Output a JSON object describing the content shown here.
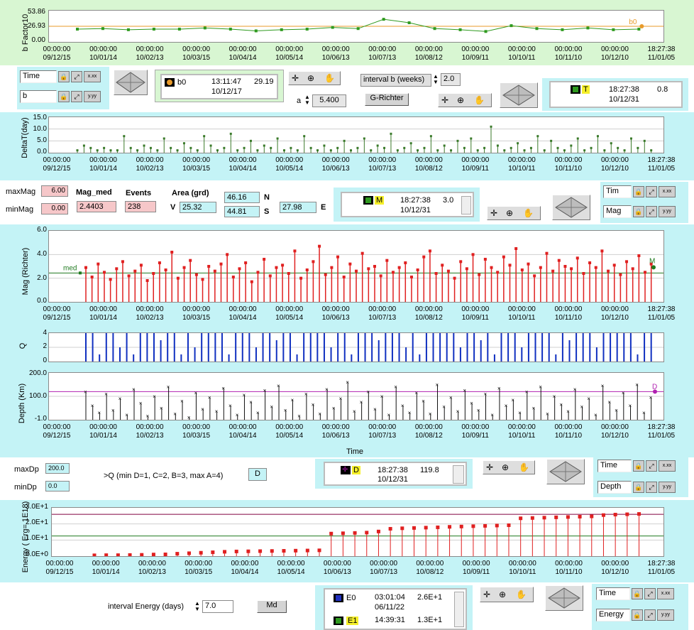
{
  "chart_data": [
    {
      "type": "line",
      "ylabel": "b Factor10",
      "yticks": [
        "53.86",
        "26.93",
        "0.00"
      ],
      "ylim": [
        0,
        53.86
      ],
      "x_ticks": [
        [
          "00:00:00",
          "09/12/15"
        ],
        [
          "00:00:00",
          "10/01/14"
        ],
        [
          "00:00:00",
          "10/02/13"
        ],
        [
          "00:00:00",
          "10/03/15"
        ],
        [
          "00:00:00",
          "10/04/14"
        ],
        [
          "00:00:00",
          "10/05/14"
        ],
        [
          "00:00:00",
          "10/06/13"
        ],
        [
          "00:00:00",
          "10/07/13"
        ],
        [
          "00:00:00",
          "10/08/12"
        ],
        [
          "00:00:00",
          "10/09/11"
        ],
        [
          "00:00:00",
          "10/10/11"
        ],
        [
          "00:00:00",
          "10/11/10"
        ],
        [
          "00:00:00",
          "10/12/10"
        ],
        [
          "18:27:38",
          "11/01/05"
        ]
      ],
      "values": [
        22,
        23,
        21,
        22,
        22,
        24,
        22,
        19,
        21,
        22,
        25,
        23,
        39,
        33,
        23,
        21,
        18,
        28,
        23,
        21,
        24,
        21,
        22
      ],
      "ref_line": 26.93,
      "cursor_label": "b0",
      "colors": {
        "line": "#2f9a1f",
        "ref": "#e89a2a",
        "cursor": "#e89a2a"
      }
    },
    {
      "type": "bar",
      "ylabel": "DeltaT(day)",
      "yticks": [
        "15.0",
        "10.0",
        "5.0",
        "0.0"
      ],
      "ylim": [
        0,
        15
      ],
      "x_ticks": [
        [
          "00:00:00",
          "09/12/15"
        ],
        [
          "00:00:00",
          "10/01/14"
        ],
        [
          "00:00:00",
          "10/02/13"
        ],
        [
          "00:00:00",
          "10/03/15"
        ],
        [
          "00:00:00",
          "10/04/14"
        ],
        [
          "00:00:00",
          "10/05/14"
        ],
        [
          "00:00:00",
          "10/06/13"
        ],
        [
          "00:00:00",
          "10/07/13"
        ],
        [
          "00:00:00",
          "10/08/12"
        ],
        [
          "00:00:00",
          "10/09/11"
        ],
        [
          "00:00:00",
          "10/10/11"
        ],
        [
          "00:00:00",
          "10/11/10"
        ],
        [
          "00:00:00",
          "10/12/10"
        ],
        [
          "18:27:38",
          "11/01/05"
        ]
      ],
      "values": [
        1,
        3,
        2,
        1,
        2,
        1,
        1,
        7,
        2,
        1,
        3,
        2,
        1,
        6,
        2,
        1,
        4,
        2,
        1,
        7,
        3,
        1,
        2,
        8,
        1,
        2,
        5,
        1,
        3,
        2,
        6,
        1,
        2,
        1,
        7,
        2,
        1,
        3,
        1,
        2,
        5,
        1,
        2,
        6,
        1,
        3,
        2,
        8,
        1,
        2,
        4,
        1,
        2,
        7,
        1,
        3,
        1,
        5,
        2,
        6,
        1,
        2,
        11,
        3,
        1,
        2,
        4,
        1,
        2,
        7,
        1,
        5,
        2,
        1,
        3,
        6,
        1,
        2,
        7,
        1,
        4,
        2,
        1,
        6,
        2,
        5,
        1
      ],
      "colors": {
        "line": "#3a7a2a"
      }
    },
    {
      "type": "bar",
      "ylabel": "Mag (Richter)",
      "yticks": [
        "6.0",
        "4.0",
        "2.0",
        "0.0"
      ],
      "ylim": [
        0,
        6
      ],
      "x_ticks": [
        [
          "00:00:00",
          "09/12/15"
        ],
        [
          "00:00:00",
          "10/01/14"
        ],
        [
          "00:00:00",
          "10/02/13"
        ],
        [
          "00:00:00",
          "10/03/15"
        ],
        [
          "00:00:00",
          "10/04/14"
        ],
        [
          "00:00:00",
          "10/05/14"
        ],
        [
          "00:00:00",
          "10/06/13"
        ],
        [
          "00:00:00",
          "10/07/13"
        ],
        [
          "00:00:00",
          "10/08/12"
        ],
        [
          "00:00:00",
          "10/09/11"
        ],
        [
          "00:00:00",
          "10/10/11"
        ],
        [
          "00:00:00",
          "10/11/10"
        ],
        [
          "00:00:00",
          "10/12/10"
        ],
        [
          "18:27:38",
          "11/01/05"
        ]
      ],
      "values": [
        2.9,
        2.1,
        3.2,
        2.5,
        1.9,
        2.8,
        3.4,
        2.2,
        2.6,
        3.1,
        1.8,
        2.4,
        3.3,
        2.7,
        4.2,
        2.0,
        2.9,
        3.5,
        2.3,
        1.9,
        3.0,
        2.6,
        3.2,
        4.0,
        2.1,
        2.8,
        3.3,
        1.7,
        2.5,
        3.6,
        2.2,
        2.9,
        3.1,
        2.4,
        4.3,
        2.0,
        2.7,
        3.4,
        4.7,
        2.3,
        2.9,
        3.8,
        2.1,
        3.2,
        2.6,
        4.1,
        2.8,
        3.0,
        2.2,
        3.5,
        2.5,
        2.9,
        3.3,
        2.1,
        2.7,
        3.8,
        4.3,
        2.4,
        3.1,
        2.6,
        2.0,
        3.4,
        2.8,
        4.0,
        2.3,
        3.6,
        2.9,
        2.5,
        3.8,
        3.1,
        4.5,
        2.7,
        3.2,
        2.2,
        2.9,
        4.1,
        2.6,
        3.5,
        3.0,
        2.8,
        3.7,
        2.4,
        3.3,
        2.9,
        4.3,
        2.6,
        3.1,
        2.3,
        3.4,
        2.8,
        3.9,
        2.5,
        3.2
      ],
      "ref_line": 2.4403,
      "ref_label": "med",
      "cursor_label": "M",
      "colors": {
        "line": "#e02020",
        "ref": "#1f7a1f",
        "cursor": "#1f7a1f"
      }
    },
    {
      "type": "bar",
      "ylabel": "Q",
      "yticks": [
        "4",
        "2",
        "0"
      ],
      "ylim": [
        0,
        4
      ],
      "values": [
        4,
        4,
        1,
        4,
        4,
        2,
        4,
        1,
        4,
        4,
        4,
        3,
        4,
        4,
        1,
        4,
        2,
        4,
        4,
        4,
        4,
        1,
        4,
        4,
        4,
        2,
        4,
        4,
        3,
        4,
        4,
        1,
        4,
        4,
        4,
        4,
        2,
        4,
        4,
        1,
        4,
        4,
        4,
        3,
        4,
        4,
        4,
        2,
        4,
        1,
        4,
        4,
        4,
        4,
        4,
        2,
        4,
        4,
        3,
        4,
        1,
        4,
        4,
        4,
        2,
        4,
        4,
        4,
        4,
        1,
        4,
        3,
        4,
        4,
        4,
        2,
        4,
        4,
        4,
        4,
        4,
        1,
        4,
        4
      ],
      "colors": {
        "line": "#1030c0"
      }
    },
    {
      "type": "scatter",
      "ylabel": "Depth (Km)",
      "xlabel": "Time",
      "yticks": [
        "200.0",
        "100.0",
        "-1.0"
      ],
      "ylim": [
        -1,
        200
      ],
      "x_ticks": [
        [
          "00:00:00",
          "09/12/15"
        ],
        [
          "00:00:00",
          "10/01/14"
        ],
        [
          "00:00:00",
          "10/02/13"
        ],
        [
          "00:00:00",
          "10/03/15"
        ],
        [
          "00:00:00",
          "10/04/14"
        ],
        [
          "00:00:00",
          "10/05/14"
        ],
        [
          "00:00:00",
          "10/06/13"
        ],
        [
          "00:00:00",
          "10/07/13"
        ],
        [
          "00:00:00",
          "10/08/12"
        ],
        [
          "00:00:00",
          "10/09/11"
        ],
        [
          "00:00:00",
          "10/10/11"
        ],
        [
          "00:00:00",
          "10/11/10"
        ],
        [
          "00:00:00",
          "10/12/10"
        ],
        [
          "18:27:38",
          "11/01/05"
        ]
      ],
      "values": [
        120,
        60,
        30,
        110,
        40,
        90,
        20,
        130,
        70,
        15,
        100,
        50,
        140,
        25,
        80,
        10,
        115,
        45,
        95,
        35,
        135,
        60,
        20,
        105,
        75,
        30,
        125,
        55,
        145,
        40,
        85,
        15,
        110,
        65,
        25,
        130,
        50,
        90,
        160,
        35,
        75,
        120,
        45,
        100,
        20,
        140,
        60,
        30,
        115,
        80,
        25,
        150,
        55,
        95,
        35,
        125,
        70,
        40,
        110,
        20,
        135,
        60,
        85,
        30,
        120,
        50,
        140,
        25,
        100,
        65,
        35,
        130,
        55,
        90,
        20,
        145,
        75,
        40,
        115,
        60,
        150,
        30,
        95
      ],
      "ref_line": 119.8,
      "cursor_label": "D",
      "colors": {
        "line": "#111111",
        "ref": "#b020b0",
        "cursor": "#b020b0"
      }
    },
    {
      "type": "bar",
      "ylabel": "Energy ( Erg= 1E18)",
      "yticks": [
        "3.0E+1",
        "2.0E+1",
        "1.0E+1",
        "0.0E+0"
      ],
      "ylim": [
        0,
        30
      ],
      "x_ticks": [
        [
          "00:00:00",
          "09/12/15"
        ],
        [
          "00:00:00",
          "10/01/14"
        ],
        [
          "00:00:00",
          "10/02/13"
        ],
        [
          "00:00:00",
          "10/03/15"
        ],
        [
          "00:00:00",
          "10/04/14"
        ],
        [
          "00:00:00",
          "10/05/14"
        ],
        [
          "00:00:00",
          "10/06/13"
        ],
        [
          "00:00:00",
          "10/07/13"
        ],
        [
          "00:00:00",
          "10/08/12"
        ],
        [
          "00:00:00",
          "10/09/11"
        ],
        [
          "00:00:00",
          "10/10/11"
        ],
        [
          "00:00:00",
          "10/11/10"
        ],
        [
          "00:00:00",
          "10/12/10"
        ],
        [
          "18:27:38",
          "11/01/05"
        ]
      ],
      "values": [
        0.5,
        0.6,
        0.6,
        0.7,
        0.8,
        1.0,
        1.1,
        1.5,
        1.8,
        2.1,
        2.4,
        2.7,
        2.9,
        3.0,
        3.1,
        3.2,
        3.3,
        3.4,
        3.5,
        3.6,
        14.0,
        14.2,
        14.4,
        14.6,
        15.3,
        17.0,
        17.3,
        17.5,
        17.7,
        17.9,
        18.2,
        18.4,
        18.6,
        18.8,
        19.0,
        19.2,
        23.5,
        23.7,
        23.9,
        24.1,
        24.3,
        24.5,
        24.7,
        25.5,
        25.8,
        26.0,
        26.2
      ],
      "ref_lines": [
        26.0,
        12.5
      ],
      "colors": {
        "line": "#e02020",
        "ref1": "#800040",
        "ref2": "#1f7a1f"
      }
    }
  ],
  "row1": {
    "time_label": "Time",
    "b_label": "b",
    "cursor": {
      "name": "b0",
      "time": "13:11:47",
      "date": "10/12/17",
      "value": "29.19"
    },
    "a_label": "a",
    "a_value": "5.400",
    "interval_label": "interval b (weeks)",
    "interval_value": "2.0",
    "grichter_label": "G-Richter",
    "t_cursor": {
      "name": "T",
      "time": "18:27:38",
      "date": "10/12/31",
      "value": "0.8"
    }
  },
  "row2": {
    "maxmag_label": "maxMag",
    "maxmag_value": "6.00",
    "minmag_label": "minMag",
    "minmag_value": "0.00",
    "magmed_label": "Mag_med",
    "magmed_value": "2.4403",
    "events_label": "Events",
    "events_value": "238",
    "area_label": "Area (grd)",
    "v_label": "V",
    "v_value": "25.32",
    "n_value": "46.16",
    "n_label": "N",
    "s_value": "44.81",
    "s_label": "S",
    "e_value": "27.98",
    "e_label": "E",
    "m_cursor": {
      "name": "M",
      "time": "18:27:38",
      "date": "10/12/31",
      "value": "3.0"
    },
    "tim_label": "Tim",
    "mag_label": "Mag"
  },
  "row3": {
    "maxdp_label": "maxDp",
    "maxdp_value": "200.0",
    "mindp_label": "minDp",
    "mindp_value": "0.0",
    "q_label": ">Q (min D=1, C=2, B=3, max A=4)",
    "q_value": "D",
    "d_cursor": {
      "name": "D",
      "time": "18:27:38",
      "date": "10/12/31",
      "value": "119.8"
    },
    "time_label": "Time",
    "depth_label": "Depth"
  },
  "row4": {
    "interval_label": "interval Energy (days)",
    "interval_value": "7.0",
    "md_label": "Md",
    "e0": {
      "name": "E0",
      "time": "03:01:04",
      "date": "06/11/22",
      "value": "2.6E+1"
    },
    "e1": {
      "name": "E1",
      "time": "14:39:31",
      "value": "1.3E+1"
    },
    "time_label": "Time",
    "energy_label": "Energy"
  },
  "icons": {
    "axis_format": "x.xx",
    "axis_format_y": "y.yy",
    "lock": "lock-icon",
    "scale": "scale-icon"
  }
}
